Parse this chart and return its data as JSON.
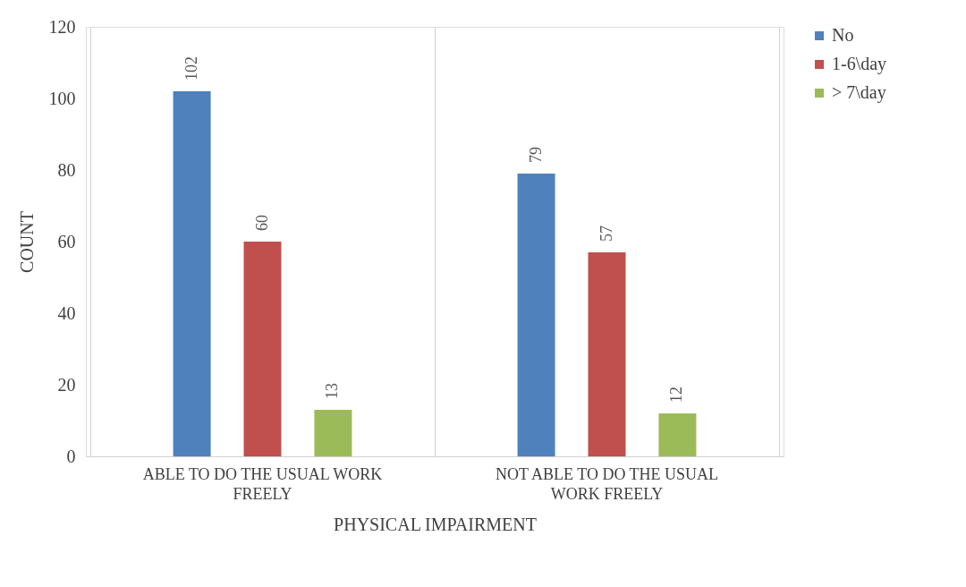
{
  "chart_data": {
    "type": "bar",
    "xlabel": "PHYSICAL IMPAIRMENT",
    "ylabel": "COUNT",
    "categories": [
      "ABLE TO DO THE USUAL WORK FREELY",
      "NOT ABLE TO DO THE USUAL WORK FREELY"
    ],
    "series": [
      {
        "name": "No",
        "color": "#4f81bd",
        "values": [
          102,
          79
        ]
      },
      {
        "name": "1-6\\day",
        "color": "#c0504d",
        "values": [
          60,
          57
        ]
      },
      {
        "name": "> 7\\day",
        "color": "#9bbb59",
        "values": [
          13,
          12
        ]
      }
    ],
    "ylim": [
      0,
      120
    ],
    "yticks": [
      0,
      20,
      40,
      60,
      80,
      100,
      120
    ],
    "grid": "x",
    "legend": "right",
    "data_labels": true
  }
}
